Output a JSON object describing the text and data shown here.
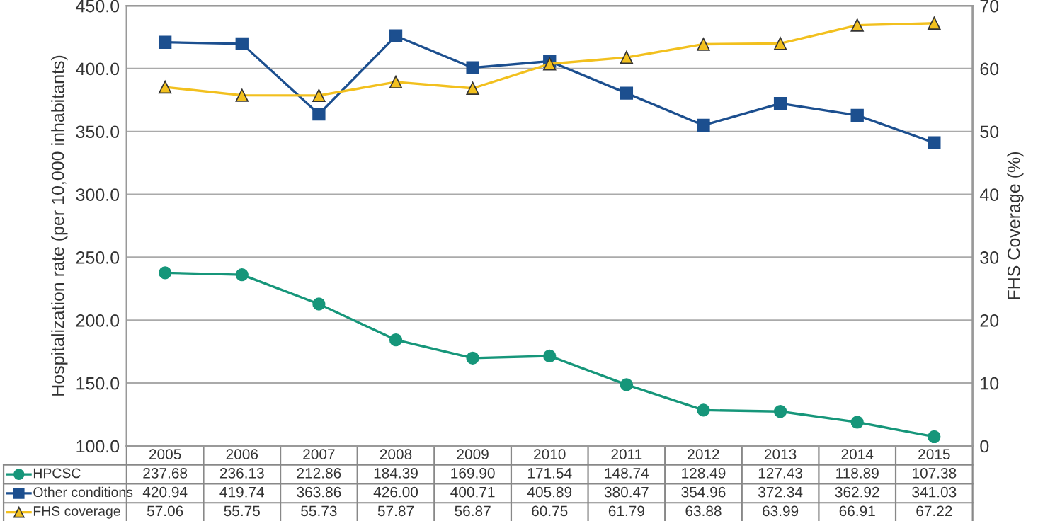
{
  "chart_data": {
    "type": "line",
    "ylabel": "Hospitalization rate (per 10,000 inhabitants)",
    "y2label": "FHS Coverage (%)",
    "categories": [
      "2005",
      "2006",
      "2007",
      "2008",
      "2009",
      "2010",
      "2011",
      "2012",
      "2013",
      "2014",
      "2015"
    ],
    "series": [
      {
        "name": "HPCSC",
        "color": "#16967a",
        "marker": "circle",
        "values": [
          237.68,
          236.13,
          212.86,
          184.39,
          169.9,
          171.54,
          148.74,
          128.49,
          127.43,
          118.89,
          107.38
        ],
        "value_labels": [
          "237.68",
          "236.13",
          "212.86",
          "184.39",
          "169.90",
          "171.54",
          "148.74",
          "128.49",
          "127.43",
          "118.89",
          "107.38"
        ]
      },
      {
        "name": "Other conditions",
        "color": "#1c4f8f",
        "marker": "square",
        "values": [
          420.94,
          419.74,
          363.86,
          426.0,
          400.71,
          405.89,
          380.47,
          354.96,
          372.34,
          362.92,
          341.03
        ],
        "value_labels": [
          "420.94",
          "419.74",
          "363.86",
          "426.00",
          "400.71",
          "405.89",
          "380.47",
          "354.96",
          "372.34",
          "362.92",
          "341.03"
        ]
      },
      {
        "name": "FHS coverage",
        "color": "#f2c01e",
        "marker": "triangle",
        "axis": "y2",
        "values": [
          57.06,
          55.75,
          55.73,
          57.87,
          56.87,
          60.75,
          61.79,
          63.88,
          63.99,
          66.91,
          67.22
        ],
        "value_labels": [
          "57.06",
          "55.75",
          "55.73",
          "57.87",
          "56.87",
          "60.75",
          "61.79",
          "63.88",
          "63.99",
          "66.91",
          "67.22"
        ]
      }
    ],
    "ylim": [
      100,
      450
    ],
    "yticks": [
      {
        "value": 100,
        "label": "100.0"
      },
      {
        "value": 150,
        "label": "150.0"
      },
      {
        "value": 200,
        "label": "200.0"
      },
      {
        "value": 250,
        "label": "250.0"
      },
      {
        "value": 300,
        "label": "300.0"
      },
      {
        "value": 350,
        "label": "350.0"
      },
      {
        "value": 400,
        "label": "400.0"
      },
      {
        "value": 450,
        "label": "450.0"
      }
    ],
    "y2lim": [
      0,
      70
    ],
    "y2ticks": [
      0,
      10,
      20,
      30,
      40,
      50,
      60,
      70
    ],
    "grid": "y",
    "legend": "bottom"
  }
}
